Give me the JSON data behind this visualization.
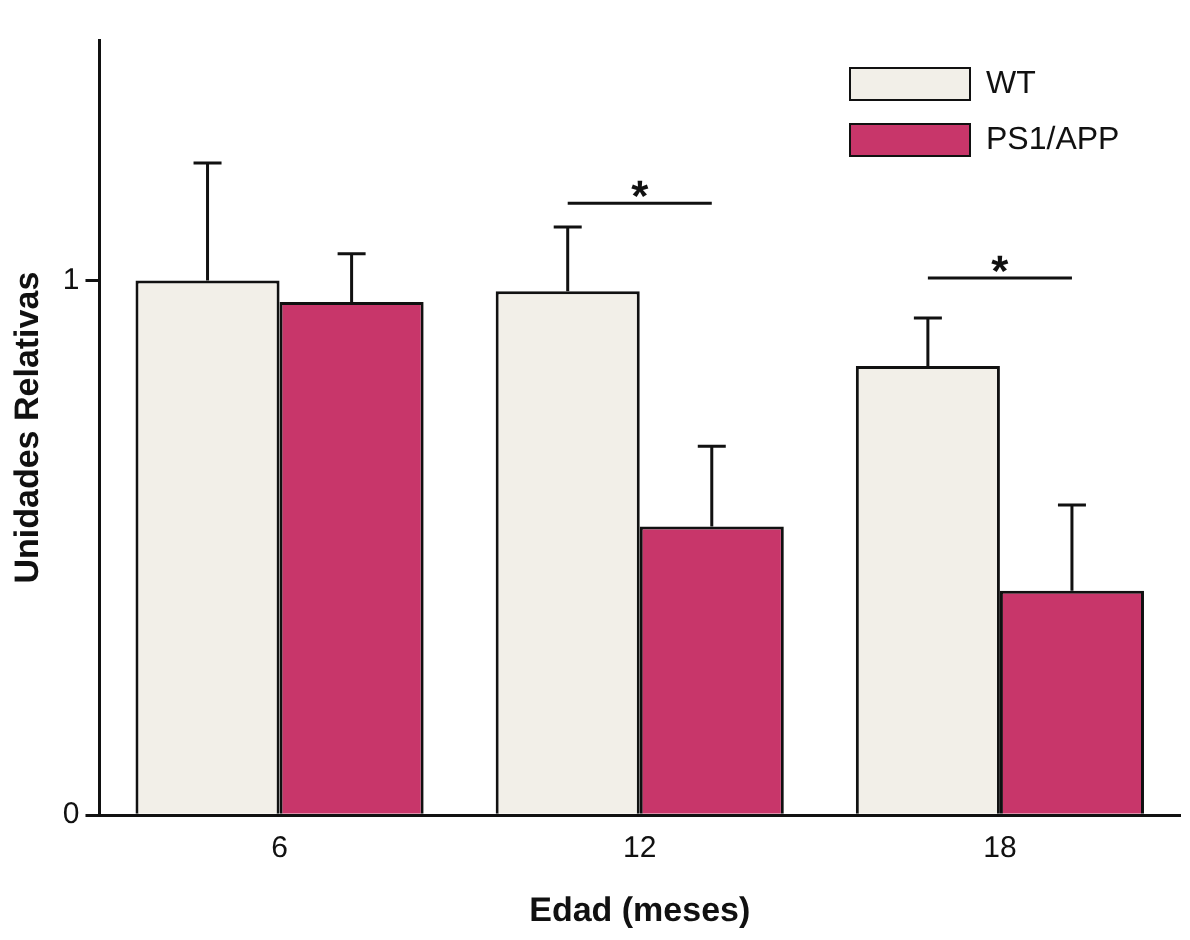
{
  "chart_data": {
    "type": "bar",
    "xlabel": "Edad (meses)",
    "ylabel": "Unidades Relativas",
    "categories": [
      "6",
      "12",
      "18"
    ],
    "series": [
      {
        "name": "WT",
        "color": "#f2efe8",
        "values": [
          1.0,
          0.98,
          0.84
        ],
        "errors": [
          [
            1.0,
            1.22
          ],
          [
            0.98,
            1.1
          ],
          [
            0.84,
            0.93
          ]
        ]
      },
      {
        "name": "PS1/APP",
        "color": "#c8366a",
        "values": [
          0.96,
          0.54,
          0.42
        ],
        "errors": [
          [
            0.96,
            1.05
          ],
          [
            0.54,
            0.69
          ],
          [
            0.42,
            0.58
          ]
        ]
      }
    ],
    "ylim": [
      0,
      1.45
    ],
    "yticks": [
      0,
      1
    ],
    "grid": false,
    "legend": "top right",
    "annotations": [
      "*",
      "*"
    ]
  }
}
